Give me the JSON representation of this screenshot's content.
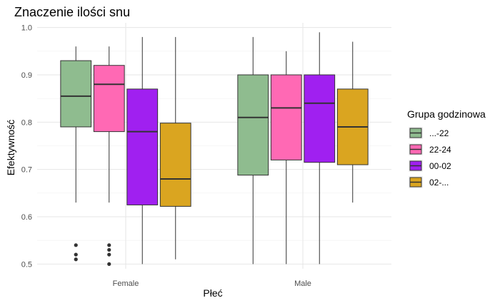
{
  "chart_data": {
    "type": "boxplot",
    "title": "Znaczenie ilości snu",
    "xlabel": "Płeć",
    "ylabel": "Efektywność",
    "ylim": [
      0.49,
      1.01
    ],
    "yticks": [
      "0.5",
      "0.6",
      "0.7",
      "0.8",
      "0.9",
      "1.0"
    ],
    "ytick_values": [
      0.5,
      0.6,
      0.7,
      0.8,
      0.9,
      1.0
    ],
    "categories": [
      "Female",
      "Male"
    ],
    "grid": true,
    "legend": {
      "title": "Grupa godzinowa",
      "position": "right",
      "entries": [
        "...-22",
        "22-24",
        "00-02",
        "02-..."
      ]
    },
    "series": [
      {
        "name": "...-22",
        "color": "#8FBC8F",
        "boxes": [
          {
            "category": "Female",
            "min": 0.63,
            "q1": 0.79,
            "median": 0.855,
            "q3": 0.93,
            "max": 0.96,
            "outliers": [
              0.54,
              0.52,
              0.51
            ]
          },
          {
            "category": "Male",
            "min": 0.5,
            "q1": 0.688,
            "median": 0.81,
            "q3": 0.9,
            "max": 0.98,
            "outliers": []
          }
        ]
      },
      {
        "name": "22-24",
        "color": "#FF69B4",
        "boxes": [
          {
            "category": "Female",
            "min": 0.63,
            "q1": 0.78,
            "median": 0.88,
            "q3": 0.92,
            "max": 0.96,
            "outliers": [
              0.54,
              0.53,
              0.52,
              0.5
            ]
          },
          {
            "category": "Male",
            "min": 0.5,
            "q1": 0.72,
            "median": 0.83,
            "q3": 0.9,
            "max": 0.95,
            "outliers": []
          }
        ]
      },
      {
        "name": "00-02",
        "color": "#A020F0",
        "boxes": [
          {
            "category": "Female",
            "min": 0.5,
            "q1": 0.625,
            "median": 0.78,
            "q3": 0.87,
            "max": 0.98,
            "outliers": []
          },
          {
            "category": "Male",
            "min": 0.5,
            "q1": 0.715,
            "median": 0.84,
            "q3": 0.9,
            "max": 0.99,
            "outliers": []
          }
        ]
      },
      {
        "name": "02-...",
        "color": "#DAA520",
        "boxes": [
          {
            "category": "Female",
            "min": 0.51,
            "q1": 0.622,
            "median": 0.68,
            "q3": 0.798,
            "max": 0.98,
            "outliers": []
          },
          {
            "category": "Male",
            "min": 0.63,
            "q1": 0.71,
            "median": 0.79,
            "q3": 0.87,
            "max": 0.97,
            "outliers": []
          }
        ]
      }
    ]
  }
}
